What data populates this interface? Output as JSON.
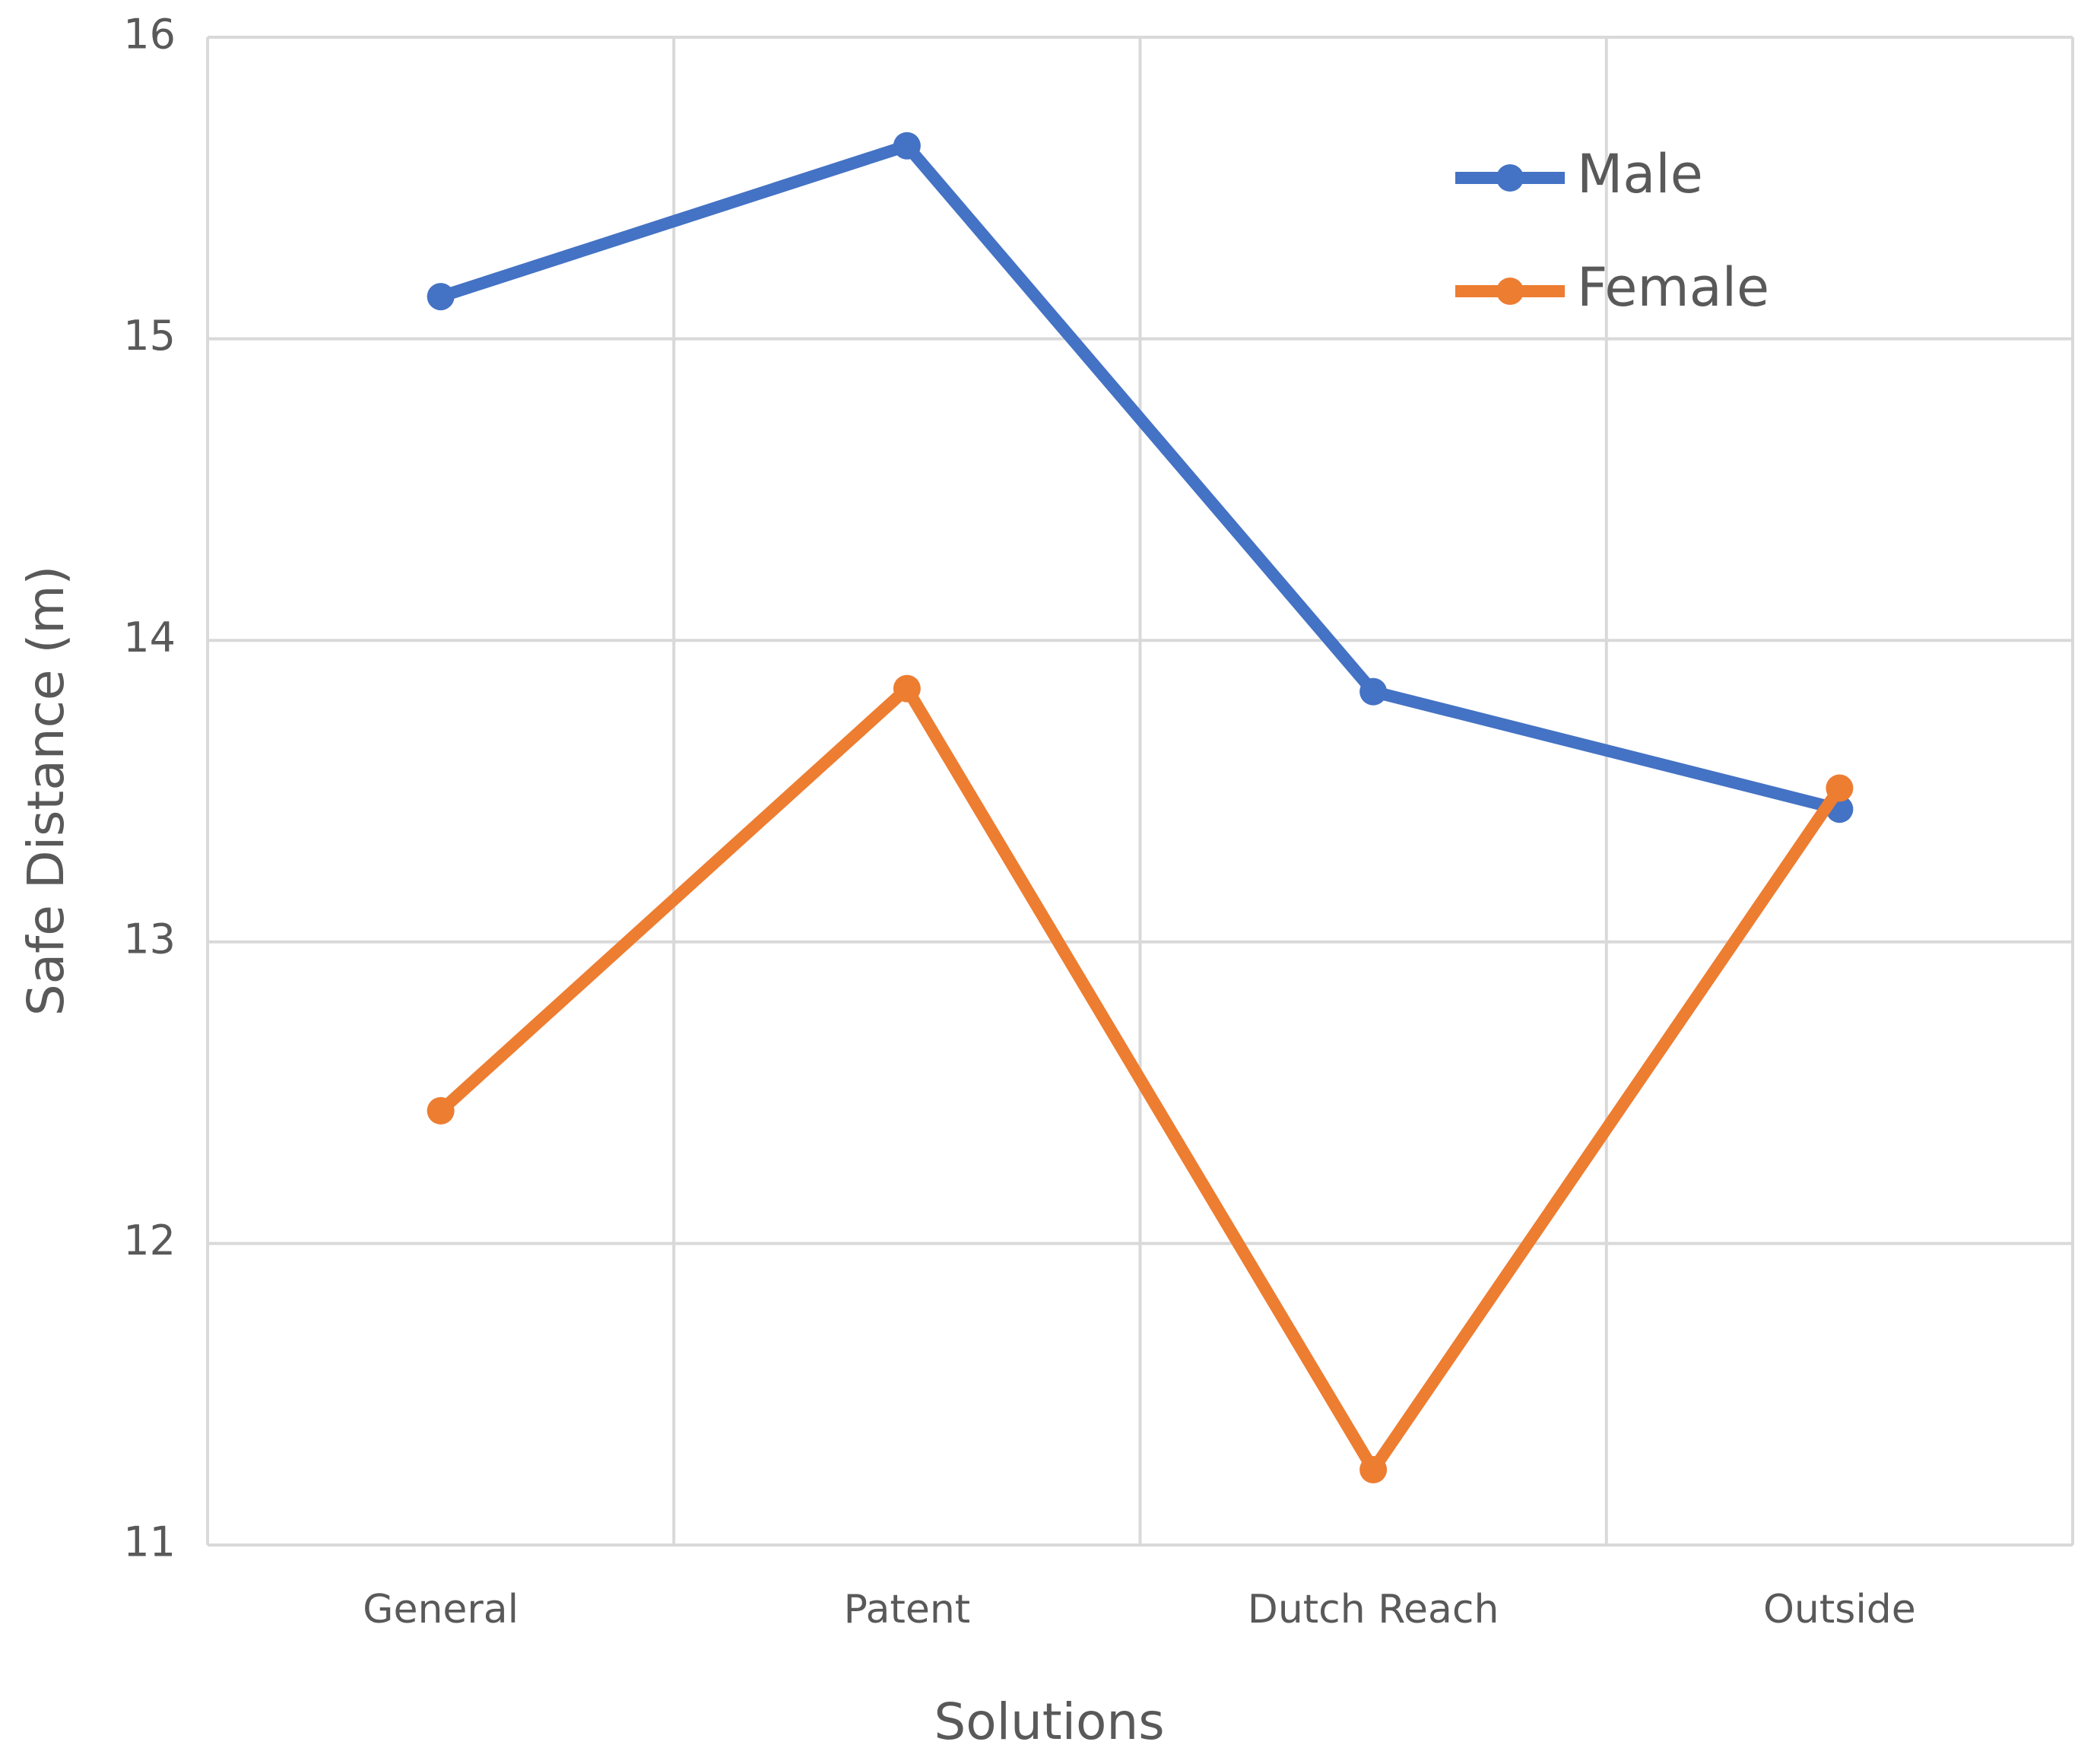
{
  "chart_data": {
    "type": "line",
    "y_label": "Safe Distance (m)",
    "x_label": "Solutions",
    "categories": [
      "General",
      "Patent",
      "Dutch Reach",
      "Outside"
    ],
    "series": [
      {
        "name": "Male",
        "color": "#4472c4",
        "values": [
          15.14,
          15.64,
          13.83,
          13.44
        ]
      },
      {
        "name": "Female",
        "color": "#ed7d31",
        "values": [
          12.44,
          13.84,
          11.25,
          13.51
        ]
      }
    ],
    "ylim": [
      11,
      16
    ],
    "yticks": [
      11,
      12,
      13,
      14,
      15,
      16
    ],
    "grid": true,
    "legend": "upper-right"
  }
}
